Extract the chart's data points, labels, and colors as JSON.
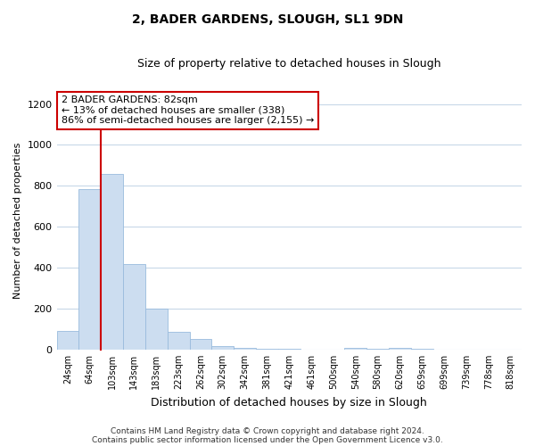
{
  "title": "2, BADER GARDENS, SLOUGH, SL1 9DN",
  "subtitle": "Size of property relative to detached houses in Slough",
  "xlabel": "Distribution of detached houses by size in Slough",
  "ylabel": "Number of detached properties",
  "bar_labels": [
    "24sqm",
    "64sqm",
    "103sqm",
    "143sqm",
    "183sqm",
    "223sqm",
    "262sqm",
    "302sqm",
    "342sqm",
    "381sqm",
    "421sqm",
    "461sqm",
    "500sqm",
    "540sqm",
    "580sqm",
    "620sqm",
    "659sqm",
    "699sqm",
    "739sqm",
    "778sqm",
    "818sqm"
  ],
  "bar_values": [
    93,
    784,
    860,
    420,
    200,
    88,
    52,
    18,
    10,
    5,
    2,
    1,
    1,
    10,
    2,
    10,
    2,
    1,
    1,
    1,
    1
  ],
  "bar_color": "#ccddf0",
  "bar_edge_color": "#99bbdd",
  "property_line_label": "2 BADER GARDENS: 82sqm",
  "annotation_line1": "← 13% of detached houses are smaller (338)",
  "annotation_line2": "86% of semi-detached houses are larger (2,155) →",
  "annotation_box_color": "#ffffff",
  "annotation_box_edge": "#cc0000",
  "property_line_color": "#cc0000",
  "ylim": [
    0,
    1260
  ],
  "yticks": [
    0,
    200,
    400,
    600,
    800,
    1000,
    1200
  ],
  "footnote1": "Contains HM Land Registry data © Crown copyright and database right 2024.",
  "footnote2": "Contains public sector information licensed under the Open Government Licence v3.0."
}
